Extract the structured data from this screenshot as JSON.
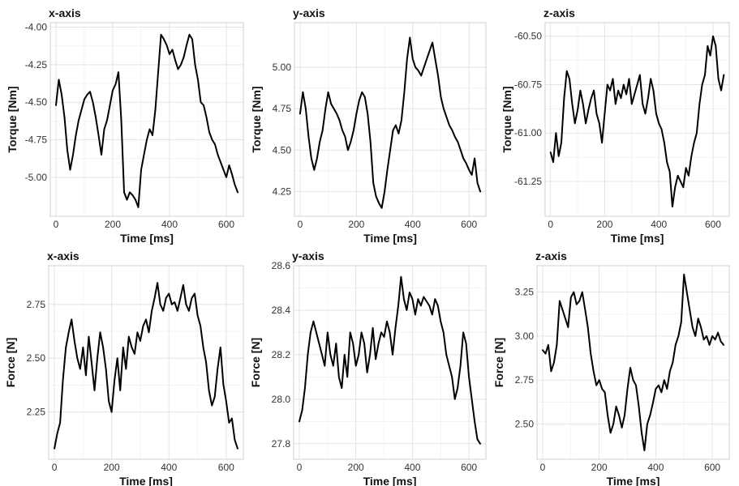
{
  "chart_data": [
    {
      "type": "line",
      "title": "x-axis",
      "xlabel": "Time [ms]",
      "ylabel": "Torque [Nm]",
      "xlim": [
        -20,
        660
      ],
      "ylim": [
        -5.26,
        -3.97
      ],
      "xticks": [
        0,
        200,
        400,
        600
      ],
      "yticks": [
        -4.0,
        -4.25,
        -4.5,
        -4.75,
        -5.0
      ],
      "ytick_labels": [
        "-4.00",
        "-4.25",
        "-4.50",
        "-4.75",
        "-5.00"
      ],
      "grid": true,
      "series": [
        {
          "x": [
            0,
            10,
            20,
            30,
            40,
            50,
            60,
            70,
            80,
            90,
            100,
            110,
            120,
            130,
            140,
            150,
            160,
            170,
            180,
            190,
            200,
            210,
            220,
            230,
            240,
            250,
            260,
            270,
            280,
            290,
            300,
            310,
            320,
            330,
            340,
            350,
            360,
            370,
            380,
            390,
            400,
            410,
            420,
            430,
            440,
            450,
            460,
            470,
            480,
            490,
            500,
            510,
            520,
            530,
            540,
            550,
            560,
            570,
            580,
            590,
            600,
            610,
            620,
            630,
            640
          ],
          "y": [
            -4.52,
            -4.35,
            -4.45,
            -4.6,
            -4.82,
            -4.95,
            -4.85,
            -4.72,
            -4.62,
            -4.55,
            -4.48,
            -4.45,
            -4.43,
            -4.5,
            -4.6,
            -4.72,
            -4.85,
            -4.68,
            -4.62,
            -4.52,
            -4.42,
            -4.38,
            -4.3,
            -4.62,
            -5.1,
            -5.15,
            -5.1,
            -5.12,
            -5.15,
            -5.2,
            -4.95,
            -4.85,
            -4.75,
            -4.68,
            -4.72,
            -4.55,
            -4.3,
            -4.05,
            -4.08,
            -4.12,
            -4.18,
            -4.15,
            -4.22,
            -4.28,
            -4.25,
            -4.2,
            -4.12,
            -4.05,
            -4.08,
            -4.25,
            -4.35,
            -4.5,
            -4.52,
            -4.6,
            -4.7,
            -4.75,
            -4.78,
            -4.85,
            -4.9,
            -4.95,
            -5.0,
            -4.92,
            -4.98,
            -5.05,
            -5.1
          ]
        }
      ]
    },
    {
      "type": "line",
      "title": "y-axis",
      "xlabel": "Time [ms]",
      "ylabel": "Torque [Nm]",
      "xlim": [
        -20,
        660
      ],
      "ylim": [
        4.1,
        5.27
      ],
      "xticks": [
        0,
        200,
        400,
        600
      ],
      "yticks": [
        4.25,
        4.5,
        4.75,
        5.0
      ],
      "ytick_labels": [
        "4.25",
        "4.50",
        "4.75",
        "5.00"
      ],
      "grid": true,
      "series": [
        {
          "x": [
            0,
            10,
            20,
            30,
            40,
            50,
            60,
            70,
            80,
            90,
            100,
            110,
            120,
            130,
            140,
            150,
            160,
            170,
            180,
            190,
            200,
            210,
            220,
            230,
            240,
            250,
            260,
            270,
            280,
            290,
            300,
            310,
            320,
            330,
            340,
            350,
            360,
            370,
            380,
            390,
            400,
            410,
            420,
            430,
            440,
            450,
            460,
            470,
            480,
            490,
            500,
            510,
            520,
            530,
            540,
            550,
            560,
            570,
            580,
            590,
            600,
            610,
            620,
            630,
            640
          ],
          "y": [
            4.72,
            4.85,
            4.75,
            4.58,
            4.45,
            4.38,
            4.45,
            4.55,
            4.62,
            4.75,
            4.85,
            4.78,
            4.75,
            4.72,
            4.68,
            4.62,
            4.58,
            4.5,
            4.55,
            4.62,
            4.72,
            4.8,
            4.85,
            4.82,
            4.72,
            4.55,
            4.3,
            4.22,
            4.18,
            4.15,
            4.25,
            4.38,
            4.5,
            4.62,
            4.65,
            4.6,
            4.68,
            4.85,
            5.05,
            5.18,
            5.05,
            5.0,
            4.98,
            4.95,
            5.0,
            5.05,
            5.1,
            5.15,
            5.05,
            4.95,
            4.82,
            4.75,
            4.7,
            4.65,
            4.62,
            4.58,
            4.55,
            4.5,
            4.45,
            4.42,
            4.38,
            4.35,
            4.45,
            4.3,
            4.25
          ]
        }
      ]
    },
    {
      "type": "line",
      "title": "z-axis",
      "xlabel": "Time [ms]",
      "ylabel": "Torque [Nm]",
      "xlim": [
        -20,
        660
      ],
      "ylim": [
        -61.43,
        -60.43
      ],
      "xticks": [
        0,
        200,
        400,
        600
      ],
      "yticks": [
        -60.5,
        -60.75,
        -61.0,
        -61.25
      ],
      "ytick_labels": [
        "-60.50",
        "-60.75",
        "-61.00",
        "-61.25"
      ],
      "grid": true,
      "series": [
        {
          "x": [
            0,
            10,
            20,
            30,
            40,
            50,
            60,
            70,
            80,
            90,
            100,
            110,
            120,
            130,
            140,
            150,
            160,
            170,
            180,
            190,
            200,
            210,
            220,
            230,
            240,
            250,
            260,
            270,
            280,
            290,
            300,
            310,
            320,
            330,
            340,
            350,
            360,
            370,
            380,
            390,
            400,
            410,
            420,
            430,
            440,
            450,
            460,
            470,
            480,
            490,
            500,
            510,
            520,
            530,
            540,
            550,
            560,
            570,
            580,
            590,
            600,
            610,
            620,
            630,
            640
          ],
          "y": [
            -61.1,
            -61.15,
            -61.0,
            -61.12,
            -61.05,
            -60.82,
            -60.68,
            -60.72,
            -60.85,
            -60.95,
            -60.88,
            -60.78,
            -60.85,
            -60.95,
            -60.88,
            -60.82,
            -60.78,
            -60.9,
            -60.95,
            -61.05,
            -60.9,
            -60.75,
            -60.78,
            -60.72,
            -60.85,
            -60.78,
            -60.82,
            -60.75,
            -60.8,
            -60.72,
            -60.85,
            -60.8,
            -60.75,
            -60.7,
            -60.85,
            -60.9,
            -60.82,
            -60.72,
            -60.78,
            -60.9,
            -60.95,
            -60.98,
            -61.05,
            -61.15,
            -61.2,
            -61.38,
            -61.28,
            -61.22,
            -61.25,
            -61.28,
            -61.18,
            -61.22,
            -61.12,
            -61.05,
            -61.0,
            -60.85,
            -60.75,
            -60.7,
            -60.55,
            -60.6,
            -60.5,
            -60.55,
            -60.72,
            -60.78,
            -60.7
          ]
        }
      ]
    },
    {
      "type": "line",
      "title": "x-axis",
      "xlabel": "Time [ms]",
      "ylabel": "Force [N]",
      "xlim": [
        -20,
        660
      ],
      "ylim": [
        2.03,
        2.93
      ],
      "xticks": [
        0,
        200,
        400,
        600
      ],
      "yticks": [
        2.25,
        2.5,
        2.75
      ],
      "ytick_labels": [
        "2.25",
        "2.50",
        "2.75"
      ],
      "grid": true,
      "series": [
        {
          "x": [
            0,
            10,
            20,
            30,
            40,
            50,
            60,
            70,
            80,
            90,
            100,
            110,
            120,
            130,
            140,
            150,
            160,
            170,
            180,
            190,
            200,
            210,
            220,
            230,
            240,
            250,
            260,
            270,
            280,
            290,
            300,
            310,
            320,
            330,
            340,
            350,
            360,
            370,
            380,
            390,
            400,
            410,
            420,
            430,
            440,
            450,
            460,
            470,
            480,
            490,
            500,
            510,
            520,
            530,
            540,
            550,
            560,
            570,
            580,
            590,
            600,
            610,
            620,
            630,
            640
          ],
          "y": [
            2.08,
            2.15,
            2.2,
            2.4,
            2.55,
            2.62,
            2.68,
            2.58,
            2.5,
            2.45,
            2.55,
            2.42,
            2.6,
            2.48,
            2.35,
            2.5,
            2.62,
            2.55,
            2.45,
            2.3,
            2.25,
            2.4,
            2.5,
            2.35,
            2.55,
            2.45,
            2.6,
            2.55,
            2.52,
            2.62,
            2.58,
            2.65,
            2.68,
            2.62,
            2.72,
            2.78,
            2.85,
            2.75,
            2.72,
            2.78,
            2.8,
            2.75,
            2.76,
            2.72,
            2.78,
            2.84,
            2.75,
            2.72,
            2.78,
            2.8,
            2.7,
            2.65,
            2.55,
            2.48,
            2.35,
            2.28,
            2.32,
            2.45,
            2.55,
            2.38,
            2.3,
            2.2,
            2.22,
            2.12,
            2.08
          ]
        }
      ]
    },
    {
      "type": "line",
      "title": "y-axis",
      "xlabel": "Time [ms]",
      "ylabel": "Force [N]",
      "xlim": [
        -20,
        660
      ],
      "ylim": [
        27.73,
        28.6
      ],
      "xticks": [
        0,
        200,
        400,
        600
      ],
      "yticks": [
        27.8,
        28.0,
        28.2,
        28.4,
        28.6
      ],
      "ytick_labels": [
        "27.8",
        "28.0",
        "28.2",
        "28.4",
        "28.6"
      ],
      "grid": true,
      "series": [
        {
          "x": [
            0,
            10,
            20,
            30,
            40,
            50,
            60,
            70,
            80,
            90,
            100,
            110,
            120,
            130,
            140,
            150,
            160,
            170,
            180,
            190,
            200,
            210,
            220,
            230,
            240,
            250,
            260,
            270,
            280,
            290,
            300,
            310,
            320,
            330,
            340,
            350,
            360,
            370,
            380,
            390,
            400,
            410,
            420,
            430,
            440,
            450,
            460,
            470,
            480,
            490,
            500,
            510,
            520,
            530,
            540,
            550,
            560,
            570,
            580,
            590,
            600,
            610,
            620,
            630,
            640
          ],
          "y": [
            27.9,
            27.95,
            28.05,
            28.2,
            28.3,
            28.35,
            28.3,
            28.25,
            28.2,
            28.15,
            28.3,
            28.2,
            28.15,
            28.25,
            28.1,
            28.05,
            28.2,
            28.1,
            28.3,
            28.25,
            28.15,
            28.2,
            28.3,
            28.25,
            28.12,
            28.2,
            28.32,
            28.18,
            28.25,
            28.3,
            28.28,
            28.35,
            28.3,
            28.2,
            28.32,
            28.42,
            28.55,
            28.45,
            28.4,
            28.48,
            28.45,
            28.38,
            28.45,
            28.42,
            28.46,
            28.44,
            28.42,
            28.38,
            28.45,
            28.42,
            28.35,
            28.3,
            28.2,
            28.15,
            28.1,
            28.0,
            28.05,
            28.15,
            28.3,
            28.25,
            28.1,
            28.0,
            27.9,
            27.82,
            27.8
          ]
        }
      ]
    },
    {
      "type": "line",
      "title": "z-axis",
      "xlabel": "Time [ms]",
      "ylabel": "Force [N]",
      "xlim": [
        -20,
        660
      ],
      "ylim": [
        2.3,
        3.4
      ],
      "xticks": [
        0,
        200,
        400,
        600
      ],
      "yticks": [
        2.5,
        2.75,
        3.0,
        3.25
      ],
      "ytick_labels": [
        "2.50",
        "2.75",
        "3.00",
        "3.25"
      ],
      "grid": true,
      "series": [
        {
          "x": [
            0,
            10,
            20,
            30,
            40,
            50,
            60,
            70,
            80,
            90,
            100,
            110,
            120,
            130,
            140,
            150,
            160,
            170,
            180,
            190,
            200,
            210,
            220,
            230,
            240,
            250,
            260,
            270,
            280,
            290,
            300,
            310,
            320,
            330,
            340,
            350,
            360,
            370,
            380,
            390,
            400,
            410,
            420,
            430,
            440,
            450,
            460,
            470,
            480,
            490,
            500,
            510,
            520,
            530,
            540,
            550,
            560,
            570,
            580,
            590,
            600,
            610,
            620,
            630,
            640
          ],
          "y": [
            2.92,
            2.9,
            2.95,
            2.8,
            2.85,
            2.95,
            3.2,
            3.15,
            3.1,
            3.05,
            3.22,
            3.25,
            3.18,
            3.2,
            3.25,
            3.15,
            3.05,
            2.9,
            2.8,
            2.72,
            2.75,
            2.7,
            2.68,
            2.55,
            2.45,
            2.5,
            2.6,
            2.55,
            2.48,
            2.55,
            2.7,
            2.82,
            2.75,
            2.72,
            2.6,
            2.45,
            2.35,
            2.5,
            2.55,
            2.62,
            2.7,
            2.72,
            2.68,
            2.75,
            2.7,
            2.8,
            2.85,
            2.95,
            3.0,
            3.08,
            3.35,
            3.25,
            3.15,
            3.05,
            3.0,
            3.1,
            3.05,
            2.98,
            3.0,
            2.95,
            3.0,
            2.98,
            3.02,
            2.97,
            2.95
          ]
        }
      ]
    }
  ]
}
